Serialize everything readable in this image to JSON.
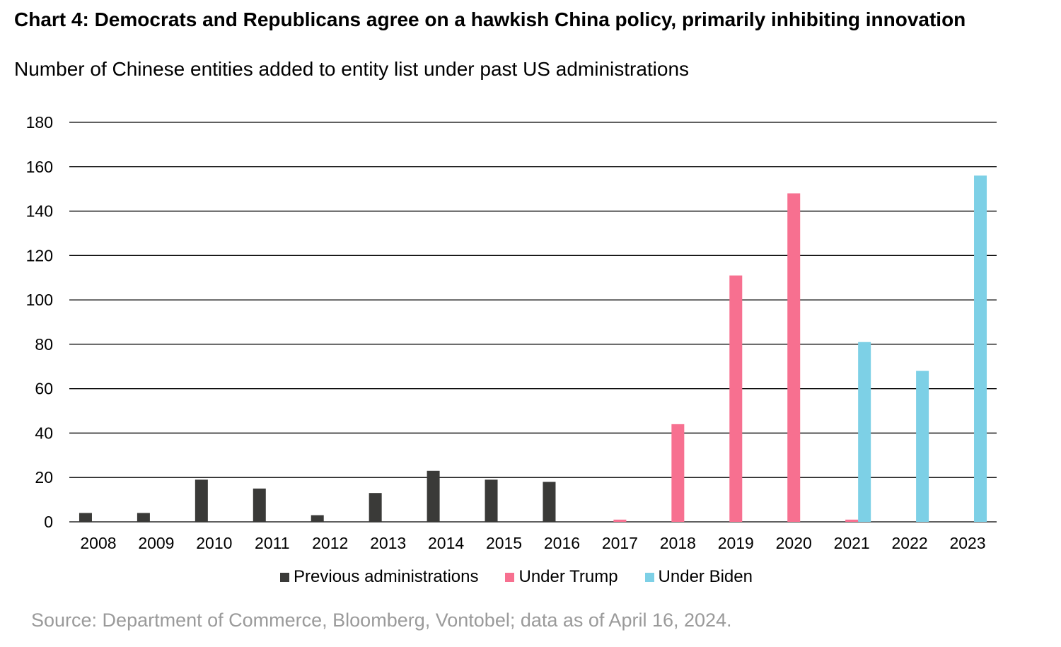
{
  "title": "Chart 4: Democrats and Republicans agree on a hawkish China policy, primarily inhibiting innovation",
  "subtitle": "Number of Chinese entities added to entity list under past US administrations",
  "source": "Source: Department of Commerce, Bloomberg, Vontobel; data as of April 16, 2024.",
  "chart_data": {
    "type": "bar",
    "title": "Chart 4: Democrats and Republicans agree on a hawkish China policy, primarily inhibiting innovation",
    "subtitle": "Number of Chinese entities added to entity list under past US administrations",
    "xlabel": "",
    "ylabel": "",
    "ylim": [
      0,
      180
    ],
    "yticks": [
      0,
      20,
      40,
      60,
      80,
      100,
      120,
      140,
      160,
      180
    ],
    "grid": true,
    "legend_position": "bottom",
    "categories": [
      "2008",
      "2009",
      "2010",
      "2011",
      "2012",
      "2013",
      "2014",
      "2015",
      "2016",
      "2017",
      "2018",
      "2019",
      "2020",
      "2021",
      "2022",
      "2023"
    ],
    "series": [
      {
        "name": "Previous administrations",
        "color": "#3a3a38",
        "values": [
          4,
          4,
          19,
          15,
          3,
          13,
          23,
          19,
          18,
          0,
          0,
          0,
          0,
          0,
          0,
          0
        ]
      },
      {
        "name": "Under Trump",
        "color": "#f77090",
        "values": [
          0,
          0,
          0,
          0,
          0,
          0,
          0,
          0,
          0,
          1,
          44,
          111,
          148,
          1,
          0,
          0
        ]
      },
      {
        "name": "Under Biden",
        "color": "#7dd0e6",
        "values": [
          0,
          0,
          0,
          0,
          0,
          0,
          0,
          0,
          0,
          0,
          0,
          0,
          0,
          81,
          68,
          156
        ]
      }
    ]
  }
}
